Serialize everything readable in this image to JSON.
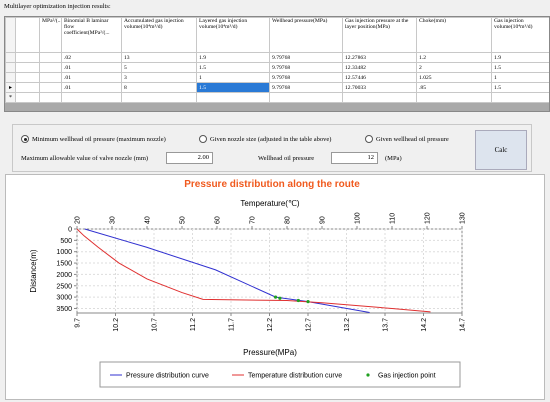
{
  "header": {
    "title": "Multilayer optimization injection results:"
  },
  "table": {
    "columns": [
      "MPa²/(...",
      "Binomial B laminar flow coefficient(MPa²/(...",
      "Accumulated gas injection volume(10⁴m³/d)",
      "Layered gas injection volume(10⁴m³/d)",
      "Wellhead pressure(MPa)",
      "Gas injection pressure at the layer position(MPa)",
      "Choke(mm)",
      "Gas injection volume(10⁴m³/d)"
    ],
    "rows": [
      [
        null,
        ".02",
        "13",
        "1.9",
        "9.79768",
        "12.27863",
        "1.2",
        "1.9"
      ],
      [
        null,
        ".01",
        "5",
        "1.5",
        "9.79768",
        "12.33482",
        "2",
        "1.5"
      ],
      [
        null,
        ".01",
        "3",
        "1",
        "9.79768",
        "12.57446",
        "1.025",
        "1"
      ],
      [
        null,
        ".01",
        "8",
        "1.5",
        "9.79768",
        "12.70033",
        ".85",
        "1.5"
      ]
    ],
    "new_row_marker": "*"
  },
  "options": {
    "radios": [
      {
        "label": "Minimum wellhead oil pressure (maximum nozzle)",
        "checked": true
      },
      {
        "label": "Given nozzle size (adjusted in the table above)",
        "checked": false
      },
      {
        "label": "Given wellhead oil pressure",
        "checked": false
      }
    ],
    "nozzle_label": "Maximum allowable value of valve nozzle (mm)",
    "nozzle_value": "2.00",
    "pressure_label": "Wellhead oil pressure",
    "pressure_value": "12",
    "pressure_unit": "(MPa)",
    "button": "Calc"
  },
  "chart": {
    "type": "line",
    "title": "Pressure distribution along the route",
    "x2label": "Temperature(℃)",
    "xlabel": "Pressure(MPa)",
    "ylabel": "Distance(m)",
    "xlim": [
      9.7,
      14.7
    ],
    "xticks": [
      9.7,
      10.2,
      10.7,
      11.2,
      11.7,
      12.2,
      12.7,
      13.2,
      13.7,
      14.2,
      14.7
    ],
    "x2lim": [
      20,
      130
    ],
    "x2ticks": [
      20,
      30,
      40,
      50,
      60,
      70,
      80,
      90,
      100,
      110,
      120,
      130
    ],
    "ylim": [
      0,
      3700
    ],
    "yticks": [
      0,
      500,
      1000,
      1500,
      2000,
      2500,
      3000,
      3500
    ],
    "y_inverted": true,
    "grid": true,
    "series": [
      {
        "name": "Pressure distribution curve",
        "color": "#3030d0",
        "axis": "x",
        "x": [
          9.8,
          10.6,
          11.5,
          12.28,
          12.7,
          13.5
        ],
        "y": [
          0,
          800,
          1800,
          3000,
          3200,
          3680
        ]
      },
      {
        "name": "Temperature distribution curve",
        "color": "#e03030",
        "axis": "x2",
        "x": [
          20,
          22,
          26,
          32,
          40,
          50,
          56,
          80,
          90,
          110,
          121
        ],
        "y": [
          0,
          300,
          800,
          1500,
          2200,
          2800,
          3100,
          3150,
          3250,
          3500,
          3650
        ]
      },
      {
        "name": "Gas injection point",
        "color": "#20a020",
        "axis": "x",
        "type": "scatter",
        "x": [
          12.27863,
          12.33482,
          12.57446,
          12.70033
        ],
        "y": [
          3000,
          3050,
          3150,
          3200
        ]
      }
    ]
  }
}
